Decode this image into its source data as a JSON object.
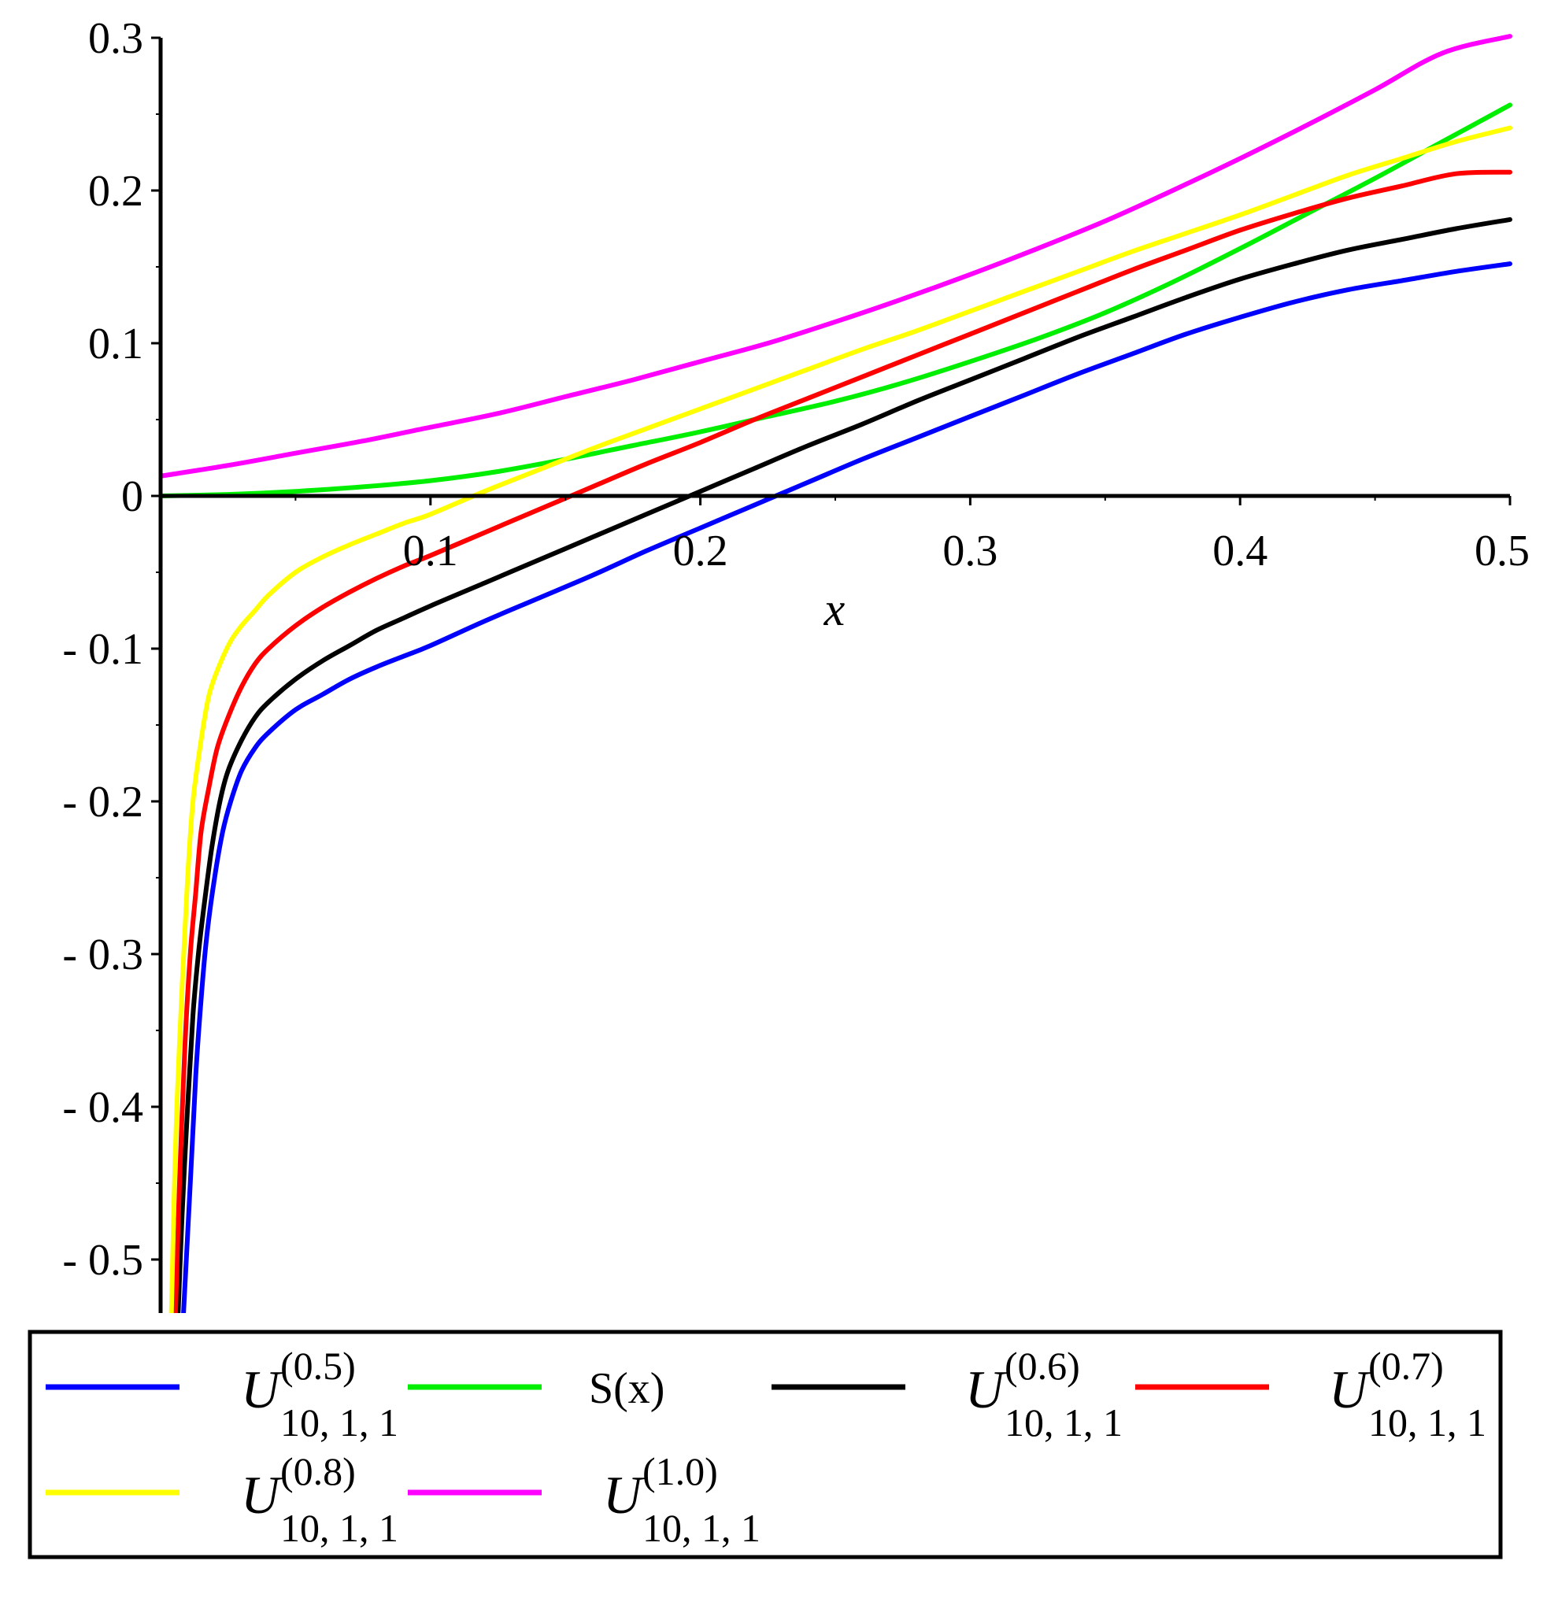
{
  "chart_data": {
    "type": "line",
    "title": "",
    "xlabel": "x",
    "ylabel": "",
    "xlim": [
      0,
      0.5
    ],
    "ylim": [
      -0.535,
      0.3
    ],
    "x_ticks": [
      {
        "value": 0.1,
        "label": "0.1"
      },
      {
        "value": 0.2,
        "label": "0.2"
      },
      {
        "value": 0.3,
        "label": "0.3"
      },
      {
        "value": 0.4,
        "label": "0.4"
      },
      {
        "value": 0.5,
        "label": "0.5"
      }
    ],
    "y_ticks": [
      {
        "value": 0.3,
        "label": "0.3"
      },
      {
        "value": 0.2,
        "label": "0.2"
      },
      {
        "value": 0.1,
        "label": "0.1"
      },
      {
        "value": 0,
        "label": "0"
      },
      {
        "value": -0.1,
        "label": "- 0.1"
      },
      {
        "value": -0.2,
        "label": "- 0.2"
      },
      {
        "value": -0.3,
        "label": "- 0.3"
      },
      {
        "value": -0.4,
        "label": "- 0.4"
      },
      {
        "value": -0.5,
        "label": "- 0.5"
      }
    ],
    "grid": false,
    "legend_position": "bottom",
    "series": [
      {
        "name": "U(0.5) 10,1,1",
        "symbol": "U",
        "superscript": "(0.5)",
        "subscript": "10, 1, 1",
        "color": "#0000ff",
        "x": [
          0.0085,
          0.011,
          0.013,
          0.015,
          0.017,
          0.02,
          0.023,
          0.026,
          0.03,
          0.035,
          0.04,
          0.05,
          0.06,
          0.07,
          0.08,
          0.09,
          0.1,
          0.12,
          0.14,
          0.16,
          0.18,
          0.2,
          0.22,
          0.24,
          0.26,
          0.28,
          0.3,
          0.32,
          0.34,
          0.36,
          0.38,
          0.4,
          0.42,
          0.44,
          0.46,
          0.48,
          0.5
        ],
        "y": [
          -0.535,
          -0.45,
          -0.38,
          -0.33,
          -0.29,
          -0.25,
          -0.22,
          -0.2,
          -0.18,
          -0.165,
          -0.155,
          -0.14,
          -0.13,
          -0.12,
          -0.112,
          -0.105,
          -0.098,
          -0.082,
          -0.067,
          -0.052,
          -0.036,
          -0.021,
          -0.006,
          0.009,
          0.024,
          0.038,
          0.052,
          0.066,
          0.08,
          0.093,
          0.106,
          0.117,
          0.127,
          0.135,
          0.141,
          0.147,
          0.152
        ]
      },
      {
        "name": "S(x)",
        "symbol": "",
        "superscript": "",
        "subscript": "",
        "plain": "S(x)",
        "color": "#00ee00",
        "x": [
          0,
          0.025,
          0.05,
          0.075,
          0.1,
          0.125,
          0.15,
          0.175,
          0.2,
          0.225,
          0.25,
          0.275,
          0.3,
          0.325,
          0.35,
          0.375,
          0.4,
          0.425,
          0.45,
          0.475,
          0.5
        ],
        "y": [
          0,
          0.001,
          0.003,
          0.006,
          0.01,
          0.016,
          0.024,
          0.033,
          0.042,
          0.052,
          0.062,
          0.074,
          0.088,
          0.103,
          0.12,
          0.14,
          0.162,
          0.185,
          0.208,
          0.232,
          0.256
        ]
      },
      {
        "name": "U(0.6) 10,1,1",
        "symbol": "U",
        "superscript": "(0.6)",
        "subscript": "10, 1, 1",
        "color": "#000000",
        "x": [
          0.0065,
          0.008,
          0.01,
          0.012,
          0.014,
          0.016,
          0.019,
          0.022,
          0.025,
          0.03,
          0.035,
          0.04,
          0.05,
          0.06,
          0.07,
          0.08,
          0.09,
          0.1,
          0.12,
          0.14,
          0.16,
          0.18,
          0.2,
          0.22,
          0.24,
          0.26,
          0.28,
          0.3,
          0.32,
          0.34,
          0.36,
          0.38,
          0.4,
          0.42,
          0.44,
          0.46,
          0.48,
          0.5
        ],
        "y": [
          -0.535,
          -0.47,
          -0.4,
          -0.34,
          -0.3,
          -0.27,
          -0.23,
          -0.2,
          -0.18,
          -0.16,
          -0.145,
          -0.135,
          -0.12,
          -0.108,
          -0.098,
          -0.088,
          -0.08,
          -0.072,
          -0.057,
          -0.042,
          -0.027,
          -0.012,
          0.003,
          0.018,
          0.033,
          0.047,
          0.062,
          0.076,
          0.09,
          0.104,
          0.117,
          0.13,
          0.142,
          0.152,
          0.161,
          0.168,
          0.175,
          0.181
        ]
      },
      {
        "name": "U(0.7) 10,1,1",
        "symbol": "U",
        "superscript": "(0.7)",
        "subscript": "10, 1, 1",
        "color": "#ff0000",
        "x": [
          0.0055,
          0.007,
          0.009,
          0.011,
          0.013,
          0.015,
          0.018,
          0.021,
          0.025,
          0.03,
          0.035,
          0.04,
          0.05,
          0.06,
          0.07,
          0.08,
          0.09,
          0.1,
          0.12,
          0.14,
          0.16,
          0.18,
          0.2,
          0.22,
          0.24,
          0.26,
          0.28,
          0.3,
          0.32,
          0.34,
          0.36,
          0.38,
          0.4,
          0.42,
          0.44,
          0.46,
          0.48,
          0.5
        ],
        "y": [
          -0.535,
          -0.45,
          -0.36,
          -0.3,
          -0.26,
          -0.22,
          -0.19,
          -0.165,
          -0.145,
          -0.125,
          -0.11,
          -0.1,
          -0.085,
          -0.073,
          -0.063,
          -0.054,
          -0.046,
          -0.039,
          -0.024,
          -0.009,
          0.006,
          0.021,
          0.035,
          0.05,
          0.064,
          0.078,
          0.092,
          0.106,
          0.12,
          0.134,
          0.148,
          0.161,
          0.174,
          0.185,
          0.195,
          0.203,
          0.211,
          0.212
        ]
      },
      {
        "name": "U(0.8) 10,1,1",
        "symbol": "U",
        "superscript": "(0.8)",
        "subscript": "10, 1, 1",
        "color": "#ffff00",
        "x": [
          0.004,
          0.005,
          0.006,
          0.008,
          0.01,
          0.012,
          0.015,
          0.018,
          0.022,
          0.026,
          0.03,
          0.035,
          0.04,
          0.05,
          0.06,
          0.07,
          0.08,
          0.09,
          0.1,
          0.12,
          0.14,
          0.16,
          0.18,
          0.2,
          0.22,
          0.24,
          0.26,
          0.28,
          0.3,
          0.32,
          0.34,
          0.36,
          0.38,
          0.4,
          0.42,
          0.44,
          0.46,
          0.48,
          0.5
        ],
        "y": [
          -0.535,
          -0.46,
          -0.4,
          -0.32,
          -0.25,
          -0.2,
          -0.16,
          -0.13,
          -0.11,
          -0.095,
          -0.085,
          -0.075,
          -0.065,
          -0.05,
          -0.04,
          -0.032,
          -0.025,
          -0.018,
          -0.012,
          0.003,
          0.017,
          0.031,
          0.044,
          0.057,
          0.07,
          0.083,
          0.096,
          0.108,
          0.121,
          0.134,
          0.147,
          0.16,
          0.172,
          0.184,
          0.197,
          0.21,
          0.221,
          0.232,
          0.241
        ]
      },
      {
        "name": "U(1.0) 10,1,1",
        "symbol": "U",
        "superscript": "(1.0)",
        "subscript": "10, 1, 1",
        "color": "#ff00ff",
        "x": [
          0,
          0.025,
          0.05,
          0.075,
          0.1,
          0.125,
          0.15,
          0.175,
          0.2,
          0.225,
          0.25,
          0.275,
          0.3,
          0.325,
          0.35,
          0.375,
          0.4,
          0.425,
          0.45,
          0.475,
          0.5
        ],
        "y": [
          0.013,
          0.02,
          0.028,
          0.036,
          0.045,
          0.054,
          0.065,
          0.076,
          0.088,
          0.1,
          0.114,
          0.129,
          0.145,
          0.162,
          0.18,
          0.2,
          0.221,
          0.243,
          0.266,
          0.29,
          0.301
        ]
      }
    ]
  }
}
